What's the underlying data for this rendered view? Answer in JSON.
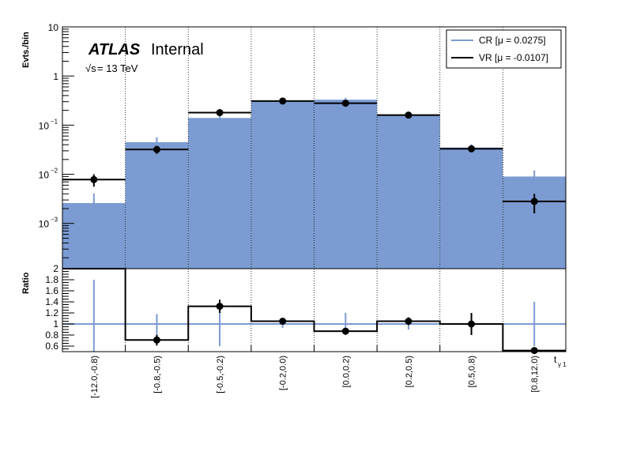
{
  "chart_data": {
    "type": "bar",
    "categories": [
      "[-12.0,-0.8)",
      "[-0.8,-0.5)",
      "[-0.5,-0.2)",
      "[-0.2,0.0)",
      "[0.0,0.2)",
      "[0.2,0.5)",
      "[0.5,0.8)",
      "[0.8,12.0)"
    ],
    "xlabel": "t",
    "xlabel_sub": "γ 1",
    "top_panel": {
      "ylabel": "Evts./bin",
      "yscale": "log",
      "ylim": [
        0.00012,
        10
      ],
      "yticks": [
        {
          "value": 10,
          "label": "10"
        },
        {
          "value": 1,
          "label": "1"
        },
        {
          "value": 0.1,
          "label": "10",
          "exp": "−1"
        },
        {
          "value": 0.01,
          "label": "10",
          "exp": "−2"
        },
        {
          "value": 0.001,
          "label": "10",
          "exp": "−3"
        }
      ],
      "series": [
        {
          "name": "CR [μ = 0.0275]",
          "style": "filled-histogram",
          "color": "#7b9bd2",
          "values": [
            0.0026,
            0.045,
            0.14,
            0.32,
            0.33,
            0.16,
            0.035,
            0.009
          ],
          "errors_low": [
            0.0013,
            0.012,
            0.02,
            0.03,
            0.03,
            0.02,
            0.006,
            0.003
          ],
          "errors_high": [
            0.0015,
            0.012,
            0.02,
            0.03,
            0.03,
            0.02,
            0.006,
            0.003
          ]
        },
        {
          "name": "VR [μ = -0.0107]",
          "style": "line-histogram-with-points",
          "color": "#000000",
          "values": [
            0.0078,
            0.032,
            0.18,
            0.31,
            0.28,
            0.16,
            0.033,
            0.0028
          ],
          "errors_low": [
            0.0022,
            0.006,
            0.015,
            0.02,
            0.02,
            0.014,
            0.004,
            0.0012
          ],
          "errors_high": [
            0.0022,
            0.006,
            0.015,
            0.02,
            0.02,
            0.014,
            0.004,
            0.0012
          ]
        }
      ]
    },
    "ratio_panel": {
      "ylabel": "Ratio",
      "ylim": [
        0.5,
        2.0
      ],
      "yticks": [
        0.6,
        0.8,
        1,
        1.2,
        1.4,
        1.6,
        1.8,
        2
      ],
      "reference_line": 1,
      "reference_color": "#7b9bd2",
      "values": [
        2.0,
        0.71,
        1.32,
        1.05,
        0.87,
        1.05,
        1.0,
        0.52
      ],
      "errors": [
        0.0,
        0.1,
        0.12,
        0.05,
        0.04,
        0.07,
        0.2,
        0.0
      ],
      "reference_errors": [
        0.8,
        0.18,
        0.4,
        0.07,
        0.2,
        0.1,
        0.18,
        0.4
      ]
    },
    "legend_position": "top-right",
    "grid": "vertical dotted at bin edges"
  },
  "annotations": {
    "atlas": "ATLAS",
    "internal": "Internal",
    "sqrt": "√s",
    "energy": " = 13 TeV"
  }
}
